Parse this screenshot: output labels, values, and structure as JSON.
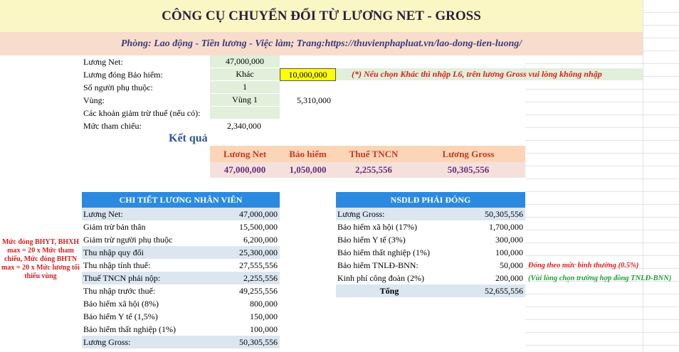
{
  "header": {
    "title": "CÔNG CỤ CHUYỂN ĐỔI TỪ LƯƠNG NET - GROSS",
    "subtitle": "Phòng: Lao động - Tiền lương - Việc làm; Trang:https://thuvienphapluat.vn/lao-dong-tien-luong/"
  },
  "inputs": {
    "rows": [
      [
        "Lương Net:",
        "47,000,000"
      ],
      [
        "Lương đóng Bảo hiểm:",
        "Khác",
        "10,000,000"
      ],
      [
        "Số người phụ thuộc:",
        "1"
      ],
      [
        "Vùng:",
        "Vùng 1",
        "5,310,000"
      ],
      [
        "Các khoản giảm trừ thuế (nếu có):"
      ],
      [
        "Mức tham chiếu:",
        "2,340,000"
      ]
    ],
    "note": "(*) Nếu chọn Khác thì nhập L6, trên lương Gross vui lòng không nhập"
  },
  "results": {
    "title": "Kết quả",
    "headers": [
      "Lương Net",
      "Bảo hiểm",
      "Thuế TNCN",
      "Lương Gross"
    ],
    "values": [
      "47,000,000",
      "1,050,000",
      "2,255,556",
      "50,305,556"
    ]
  },
  "side_note": "Mức đóng BHYT, BHXH max = 20 x Mức tham chiếu, Mức đóng BHTN max = 20 x Mức lương tối thiểu vùng",
  "employee_table": {
    "title": "CHI TIẾT LƯƠNG NHÂN VIÊN",
    "rows": [
      [
        "Lương Net:",
        "47,000,000"
      ],
      [
        "Giảm trừ bản thân",
        "15,500,000"
      ],
      [
        "Giảm trừ người phụ thuộc",
        "6,200,000"
      ],
      [
        "Thu nhập quy đổi",
        "25,300,000"
      ],
      [
        "Thu nhập tính thuế:",
        "27,555,556"
      ],
      [
        "Thuế TNCN phải nộp:",
        "2,255,556"
      ],
      [
        "Thu nhập trước thuế:",
        "49,255,556"
      ],
      [
        "Bảo hiểm xã hội (8%)",
        "800,000"
      ],
      [
        "Bảo hiểm Y tế (1,5%)",
        "150,000"
      ],
      [
        "Bảo hiểm thất nghiệp (1%)",
        "100,000"
      ],
      [
        "Lương Gross:",
        "50,305,556"
      ]
    ]
  },
  "employer_table": {
    "title": "NSDLĐ PHẢI ĐÓNG",
    "rows": [
      [
        "Lương Gross:",
        "50,305,556"
      ],
      [
        "Bảo hiểm xã hội (17%)",
        "1,700,000"
      ],
      [
        "Bảo hiểm Y tế (3%)",
        "300,000"
      ],
      [
        "Bảo hiểm thất nghiệp (1%)",
        "100,000"
      ],
      [
        "Bảo hiểm TNLĐ-BNN:",
        "50,000",
        "Đóng theo mức bình thường (0.5%)"
      ],
      [
        "Kinh phí công đoàn (2%)",
        "200,000",
        "(Vùi lòng chọn trường hợp đồng TNLĐ-BNN)"
      ],
      [
        "Tổng",
        "52,655,556"
      ]
    ]
  }
}
